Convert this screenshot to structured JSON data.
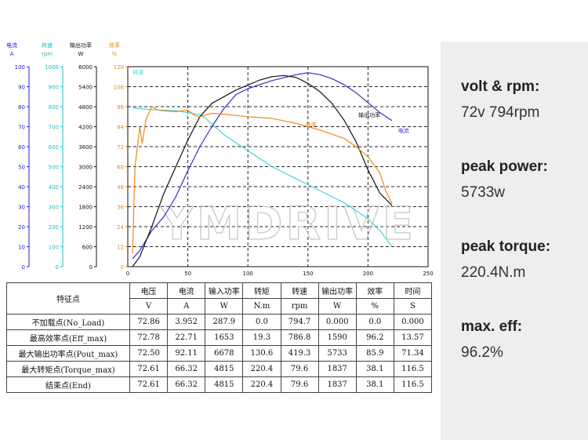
{
  "chart_data": {
    "type": "line",
    "watermark": "YMDRIVE",
    "x_axis": {
      "ticks": [
        "0",
        "50",
        "100",
        "150",
        "200",
        "250"
      ],
      "range": [
        0,
        250
      ]
    },
    "y_axes": [
      {
        "name": "电流",
        "unit": "A",
        "color": "#2020cc",
        "range": [
          0,
          100
        ],
        "ticks": [
          "0",
          "10",
          "20",
          "30",
          "40",
          "50",
          "60",
          "70",
          "80",
          "90",
          "100"
        ]
      },
      {
        "name": "转速",
        "unit": "rpm",
        "color": "#20bbbb",
        "range": [
          0,
          1000
        ],
        "ticks": [
          "0",
          "100",
          "200",
          "300",
          "400",
          "500",
          "600",
          "700",
          "800",
          "900",
          "1000"
        ]
      },
      {
        "name": "输出功率",
        "unit": "W",
        "color": "#111111",
        "range": [
          0,
          6000
        ],
        "ticks": [
          "0",
          "600",
          "1200",
          "1800",
          "2400",
          "3000",
          "3600",
          "4200",
          "4800",
          "5400",
          "6000"
        ]
      },
      {
        "name": "效率",
        "unit": "%",
        "color": "#e08a20",
        "range": [
          0,
          120
        ],
        "ticks": [
          "0",
          "12",
          "24",
          "36",
          "48",
          "60",
          "72",
          "84",
          "96",
          "108",
          "120"
        ]
      }
    ],
    "series": [
      {
        "name": "转速",
        "axis": 1,
        "color": "#40d8d8",
        "label_at": [
          4,
          962
        ],
        "x": [
          4,
          10,
          20,
          40,
          60,
          65,
          80,
          100,
          120,
          140,
          160,
          180,
          200,
          210,
          220
        ],
        "y": [
          794.7,
          790,
          785,
          780,
          760,
          740,
          660,
          580,
          500,
          440,
          380,
          320,
          240,
          180,
          100
        ]
      },
      {
        "name": "电流",
        "axis": 0,
        "color": "#3030d0",
        "label_at": [
          225,
          67
        ],
        "x": [
          4,
          10,
          20,
          30,
          40,
          50,
          60,
          70,
          80,
          90,
          100,
          120,
          140,
          150,
          160,
          170,
          180,
          190,
          200,
          210,
          220
        ],
        "y": [
          4,
          8,
          18,
          25,
          35,
          48,
          60,
          70,
          79,
          86,
          89,
          93,
          96,
          97,
          96,
          94,
          91,
          87,
          82,
          77,
          73
        ]
      },
      {
        "name": "输出功率",
        "axis": 2,
        "color": "#111111",
        "label_at": [
          192,
          4500
        ],
        "x": [
          4,
          10,
          20,
          30,
          40,
          50,
          60,
          65,
          70,
          80,
          90,
          100,
          110,
          120,
          130,
          140,
          150,
          160,
          170,
          180,
          190,
          200,
          210,
          220
        ],
        "y": [
          0,
          300,
          1200,
          2200,
          3000,
          3800,
          4500,
          4700,
          4900,
          5100,
          5300,
          5450,
          5600,
          5700,
          5733,
          5680,
          5500,
          5250,
          4900,
          4400,
          3750,
          2900,
          2200,
          1837
        ]
      },
      {
        "name": "效率",
        "axis": 3,
        "color": "#ea8a1e",
        "label_at": [
          148,
          84
        ],
        "x": [
          4,
          6,
          8,
          10,
          12,
          15,
          20,
          25,
          30,
          40,
          50,
          55,
          60,
          70,
          80,
          100,
          120,
          140,
          150,
          160,
          180,
          190,
          200,
          210,
          215,
          220
        ],
        "y": [
          8,
          60,
          72,
          84,
          74,
          88,
          96,
          94,
          93.5,
          93,
          94,
          91,
          90,
          92,
          91.5,
          90,
          89,
          86,
          84,
          82,
          77,
          72,
          66,
          56,
          45,
          38
        ]
      }
    ]
  },
  "table": {
    "header_title": "特征点",
    "columns": [
      {
        "name": "电压",
        "unit": "V"
      },
      {
        "name": "电流",
        "unit": "A"
      },
      {
        "name": "输入功率",
        "unit": "W"
      },
      {
        "name": "转矩",
        "unit": "N.m"
      },
      {
        "name": "转速",
        "unit": "rpm"
      },
      {
        "name": "输出功率",
        "unit": "W"
      },
      {
        "name": "效率",
        "unit": "%"
      },
      {
        "name": "时间",
        "unit": "S"
      }
    ],
    "rows": [
      {
        "label": "不加载点(No_Load)",
        "values": [
          "72.86",
          "3.952",
          "287.9",
          "0.0",
          "794.7",
          "0.000",
          "0.0",
          "0.000"
        ]
      },
      {
        "label": "最高效率点(Eff_max)",
        "values": [
          "72.78",
          "22.71",
          "1653",
          "19.3",
          "786.8",
          "1590",
          "96.2",
          "13.57"
        ]
      },
      {
        "label": "最大输出功率点(Pout_max)",
        "values": [
          "72.50",
          "92.11",
          "6678",
          "130.6",
          "419.3",
          "5733",
          "85.9",
          "71.34"
        ]
      },
      {
        "label": "最大转矩点(Torque_max)",
        "values": [
          "72.61",
          "66.32",
          "4815",
          "220.4",
          "79.6",
          "1837",
          "38.1",
          "116.5"
        ]
      },
      {
        "label": "结束点(End)",
        "values": [
          "72.61",
          "66.32",
          "4815",
          "220.4",
          "79.6",
          "1837",
          "38.1",
          "116.5"
        ]
      }
    ]
  },
  "specs": [
    {
      "label": "volt & rpm:",
      "value": "72v 794rpm"
    },
    {
      "label": "peak power:",
      "value": "5733w"
    },
    {
      "label": "peak torque:",
      "value": "220.4N.m"
    },
    {
      "label": "max. eff:",
      "value": "96.2%"
    }
  ]
}
